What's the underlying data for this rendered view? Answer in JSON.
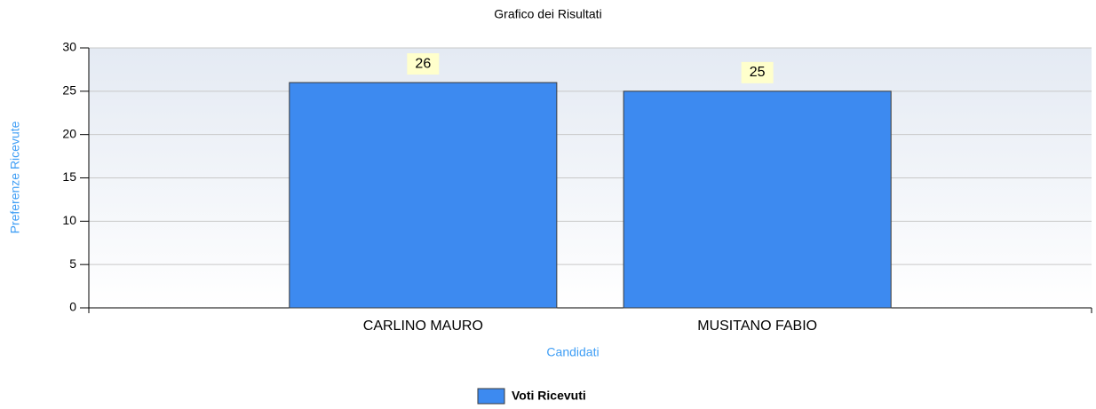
{
  "chart_data": {
    "type": "bar",
    "title": "Grafico dei Risultati",
    "x_label": "Candidati",
    "y_label": "Preferenze Ricevute",
    "categories": [
      "CARLINO MAURO",
      "MUSITANO FABIO"
    ],
    "series": [
      {
        "name": "Voti Ricevuti",
        "color": "#3d8af0",
        "values": [
          26,
          25
        ]
      }
    ],
    "ylim": [
      0,
      30
    ],
    "yticks": [
      0,
      5,
      10,
      15,
      20,
      25,
      30
    ],
    "grid": true
  }
}
